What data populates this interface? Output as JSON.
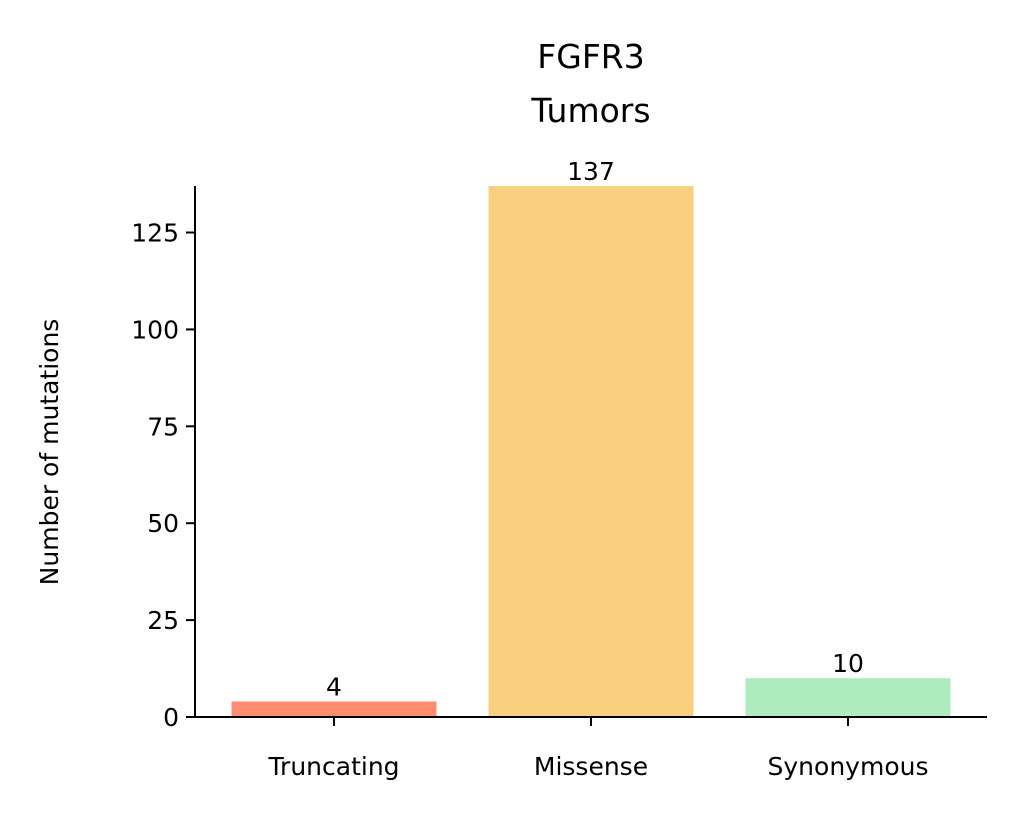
{
  "chart_data": {
    "type": "bar",
    "title_lines": [
      "FGFR3",
      "Tumors"
    ],
    "ylabel": "Number of mutations",
    "xlabel": "",
    "categories": [
      "Truncating",
      "Missense",
      "Synonymous"
    ],
    "values": [
      4,
      137,
      10
    ],
    "data_labels": [
      "4",
      "137",
      "10"
    ],
    "colors": [
      "#fc8d6f",
      "#f9d07f",
      "#aeecbd"
    ],
    "ylim": [
      0,
      137
    ],
    "yticks": [
      0,
      25,
      50,
      75,
      100,
      125
    ],
    "ytick_labels": [
      "0",
      "25",
      "50",
      "75",
      "100",
      "125"
    ],
    "grid": false,
    "legend": "none"
  }
}
